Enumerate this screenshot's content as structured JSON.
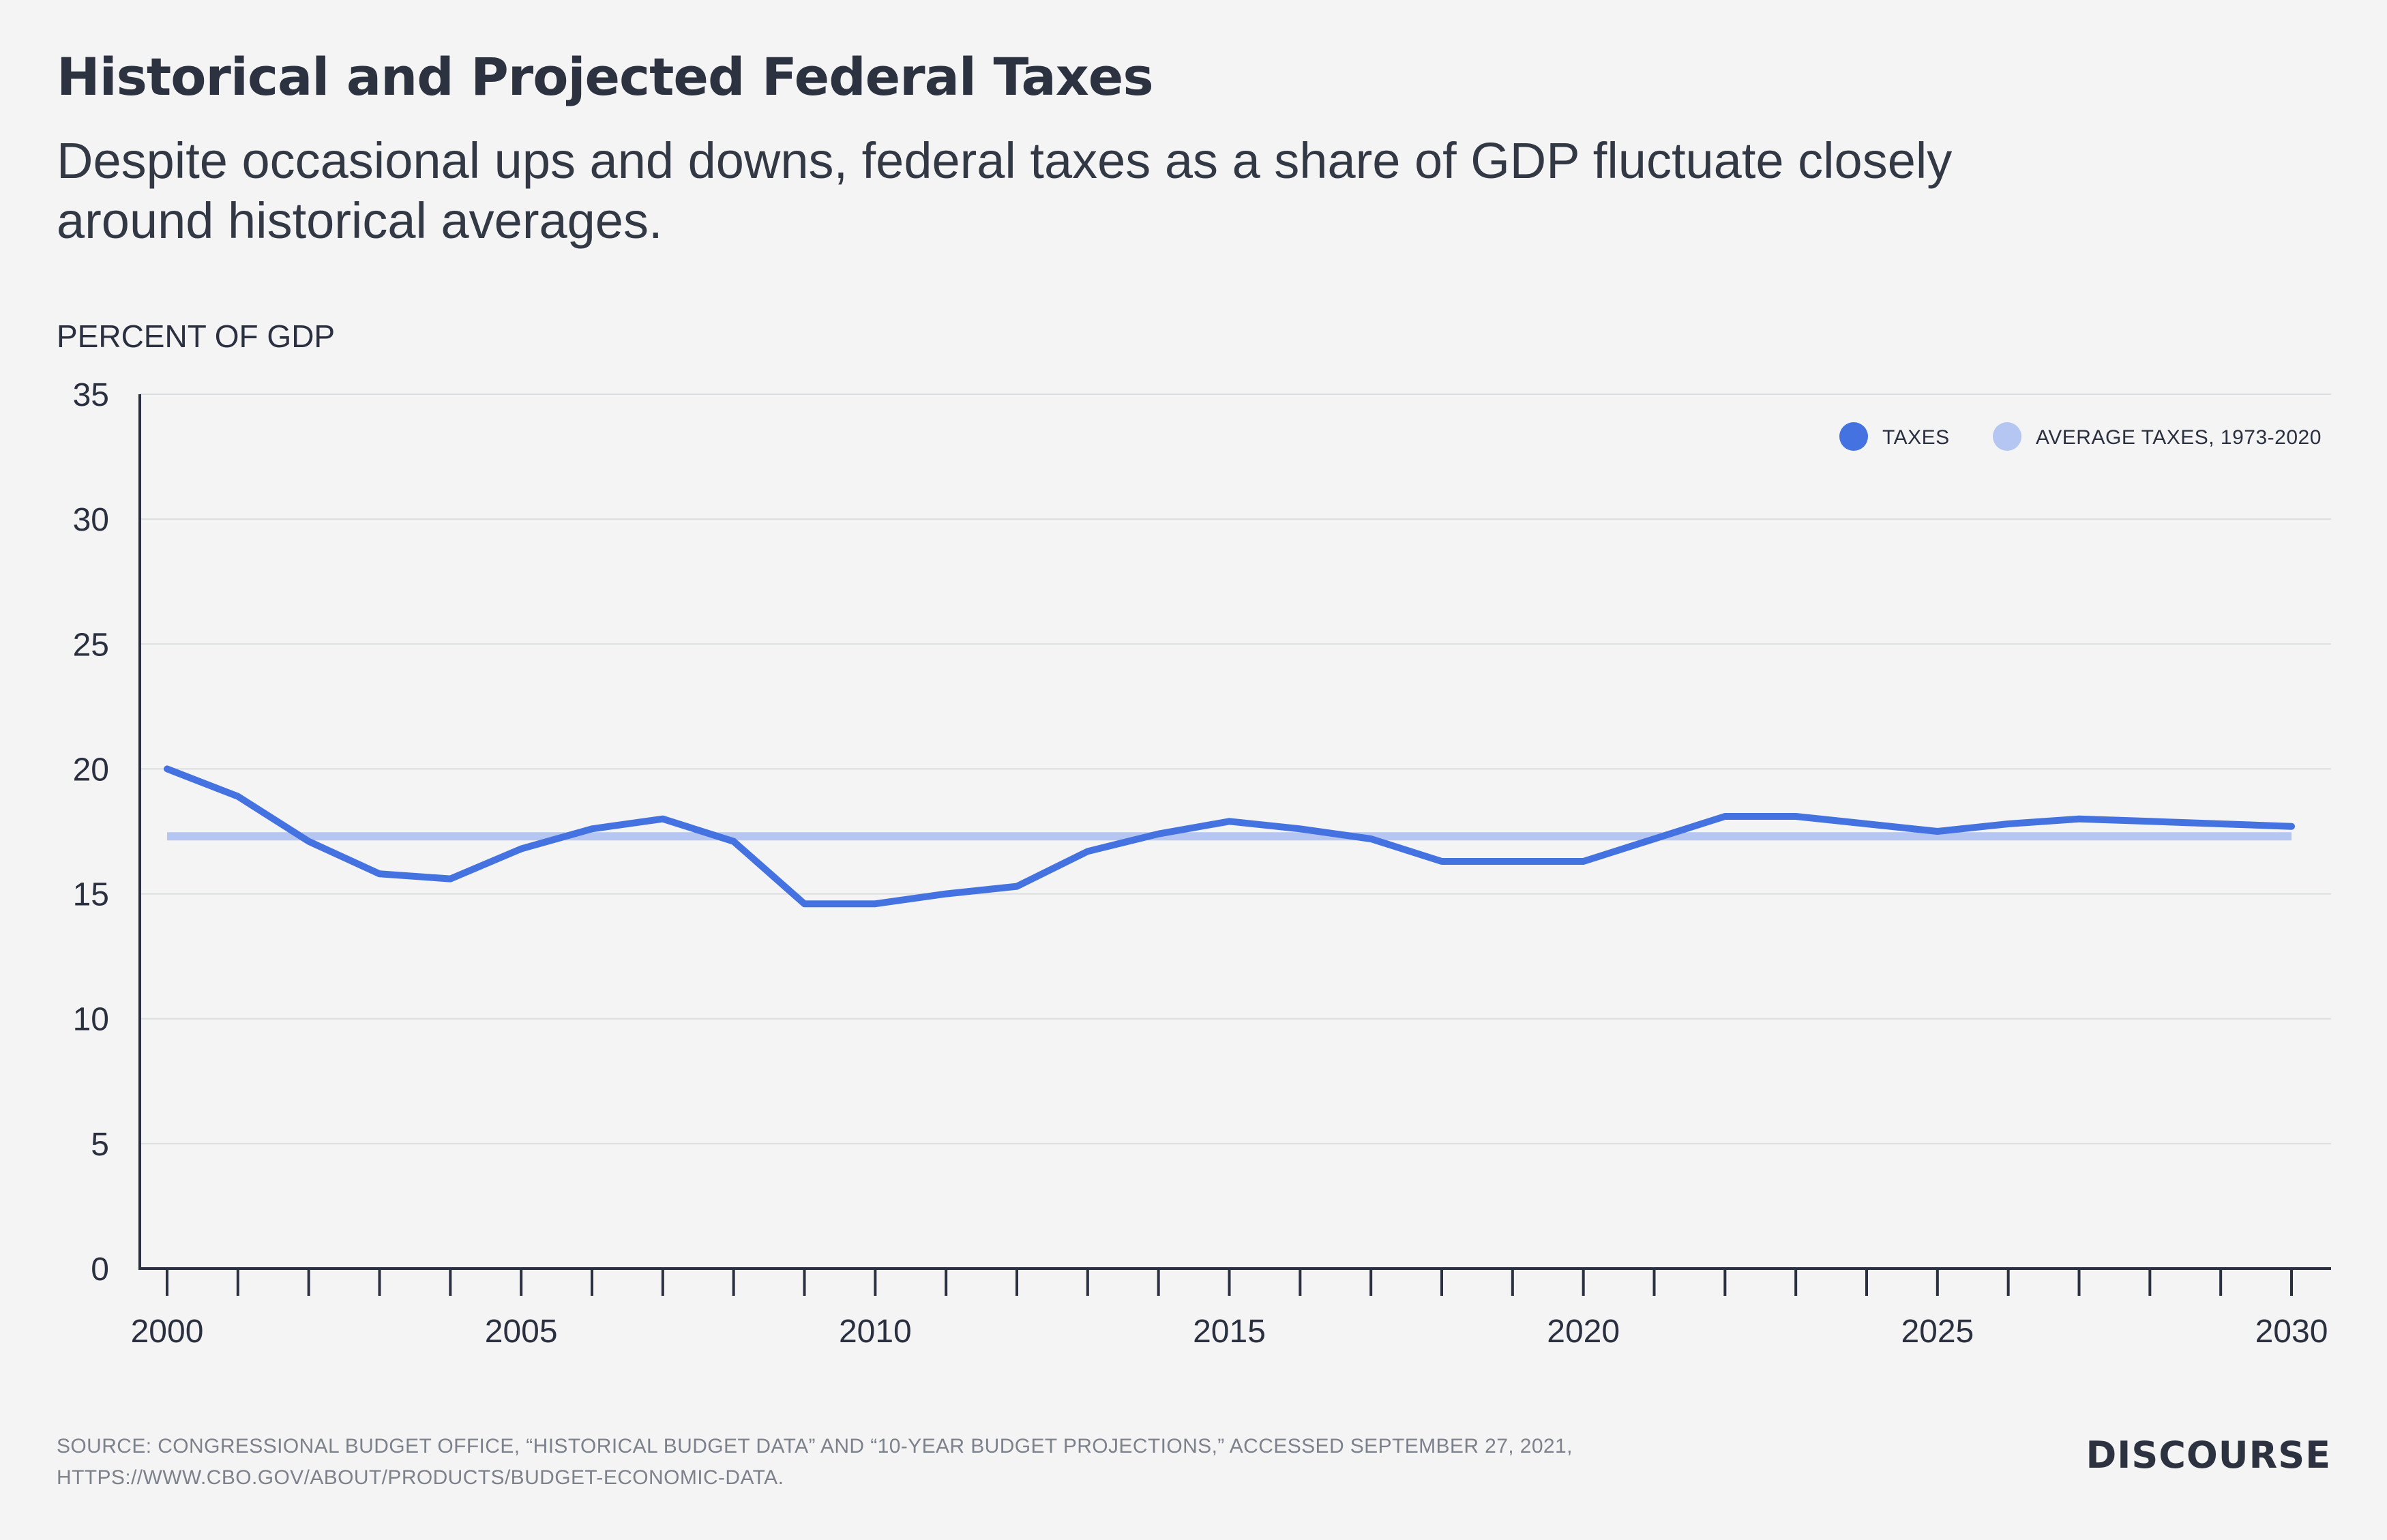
{
  "header": {
    "title": "Historical and Projected Federal Taxes",
    "subtitle": "Despite occasional ups and downs, federal taxes as a share of GDP fluctuate closely around historical averages."
  },
  "footer": {
    "source_line1": "SOURCE: CONGRESSIONAL BUDGET OFFICE, “HISTORICAL BUDGET DATA” AND “10-YEAR BUDGET PROJECTIONS,” ACCESSED SEPTEMBER 27, 2021,",
    "source_line2": "HTTPS://WWW.CBO.GOV/ABOUT/PRODUCTS/BUDGET-ECONOMIC-DATA.",
    "brand": "DISCOURSE"
  },
  "colors": {
    "taxes": "#4472e0",
    "average": "#b5c6f2",
    "axis": "#2b3040",
    "grid": "#dcdedf",
    "text": "#2b3040"
  },
  "chart_data": {
    "type": "line",
    "title": "Historical and Projected Federal Taxes",
    "ylabel": "PERCENT OF GDP",
    "xlabel": "",
    "xlim": [
      2000,
      2030
    ],
    "ylim": [
      0,
      35
    ],
    "yticks": [
      0,
      5,
      10,
      15,
      20,
      25,
      30,
      35
    ],
    "xticks_labeled": [
      2000,
      2005,
      2010,
      2015,
      2020,
      2025,
      2030
    ],
    "grid": true,
    "legend_position": "top-right",
    "x": [
      2000,
      2001,
      2002,
      2003,
      2004,
      2005,
      2006,
      2007,
      2008,
      2009,
      2010,
      2011,
      2012,
      2013,
      2014,
      2015,
      2016,
      2017,
      2018,
      2019,
      2020,
      2021,
      2022,
      2023,
      2024,
      2025,
      2026,
      2027,
      2028,
      2029,
      2030
    ],
    "series": [
      {
        "name": "TAXES",
        "values": [
          20.0,
          18.9,
          17.1,
          15.8,
          15.6,
          16.8,
          17.6,
          18.0,
          17.1,
          14.6,
          14.6,
          15.0,
          15.3,
          16.7,
          17.4,
          17.9,
          17.6,
          17.2,
          16.3,
          16.3,
          16.3,
          17.2,
          18.1,
          18.1,
          17.8,
          17.5,
          17.8,
          18.0,
          17.9,
          17.8,
          17.7
        ]
      },
      {
        "name": "AVERAGE TAXES, 1973-2020",
        "values": [
          17.3,
          17.3,
          17.3,
          17.3,
          17.3,
          17.3,
          17.3,
          17.3,
          17.3,
          17.3,
          17.3,
          17.3,
          17.3,
          17.3,
          17.3,
          17.3,
          17.3,
          17.3,
          17.3,
          17.3,
          17.3,
          17.3,
          17.3,
          17.3,
          17.3,
          17.3,
          17.3,
          17.3,
          17.3,
          17.3,
          17.3
        ]
      }
    ]
  }
}
